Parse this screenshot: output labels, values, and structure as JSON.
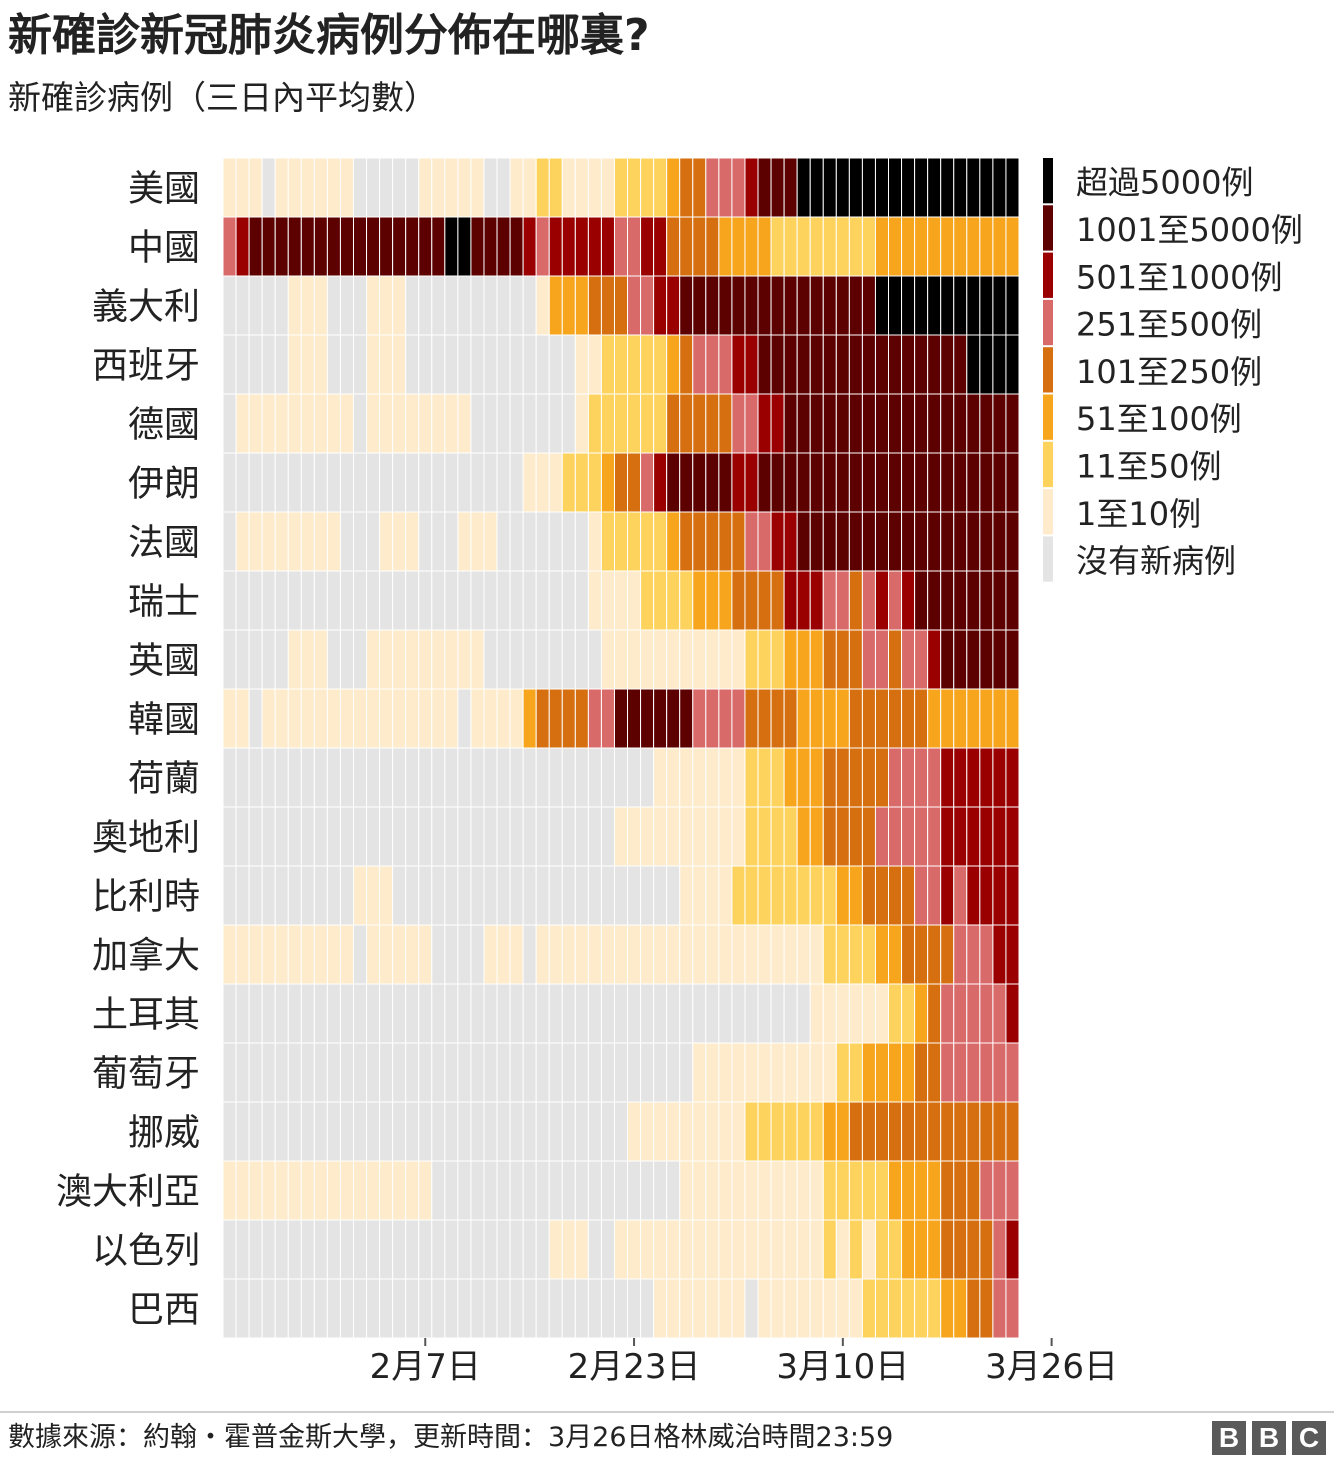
{
  "header": {
    "title": "新確診新冠肺炎病例分佈在哪裏?",
    "subtitle": "新確診病例（三日內平均數）"
  },
  "footer": {
    "source": "數據來源：約翰・霍普金斯大學，更新時間：3月26日格林威治時間23:59",
    "logo": [
      "B",
      "B",
      "C"
    ]
  },
  "colors": {
    "0": "#e4e4e4",
    "1": "#fdebcb",
    "2": "#fdd35e",
    "3": "#f7a51c",
    "4": "#d56f10",
    "5": "#d96a6a",
    "6": "#9b0000",
    "7": "#5c0000",
    "8": "#000000",
    "cell_border": "#ffffff"
  },
  "chart_data": {
    "type": "heatmap",
    "x_unit": "day",
    "x_start": "1月22日",
    "x_end": "3月26日",
    "x_ticks": [
      {
        "label": "2月7日",
        "index": 16
      },
      {
        "label": "2月23日",
        "index": 32
      },
      {
        "label": "3月10日",
        "index": 48
      },
      {
        "label": "3月26日",
        "index": 64
      }
    ],
    "legend": [
      {
        "level": 8,
        "label": "超過5000例"
      },
      {
        "level": 7,
        "label": "1001至5000例"
      },
      {
        "level": 6,
        "label": "501至1000例"
      },
      {
        "level": 5,
        "label": "251至500例"
      },
      {
        "level": 4,
        "label": "101至250例"
      },
      {
        "level": 3,
        "label": "51至100例"
      },
      {
        "level": 2,
        "label": "11至50例"
      },
      {
        "level": 1,
        "label": "1至10例"
      },
      {
        "level": 0,
        "label": "沒有新病例"
      }
    ],
    "legend_position": "right",
    "rows": [
      {
        "country": "美國",
        "levels": "1110111111000001111100112211112222344555677788888"
      },
      {
        "country": "中國",
        "levels": "5677777777777777788777765666665566444433332222222233333"
      },
      {
        "country": "義大利",
        "levels": "0000011100011100000000001333444556677777777777777788888888"
      },
      {
        "country": "西班牙",
        "levels": "0000011100011100000000000001122222345556677777777777777778"
      },
      {
        "country": "德國",
        "levels": "0111111111011111111000000001222222444445566777777777777777"
      },
      {
        "country": "伊朗",
        "levels": "0000000000000000000000011122234456777776677777777777777777"
      },
      {
        "country": "法國",
        "levels": "0111111110001110001110000000122222344444556677777777777777"
      },
      {
        "country": "瑞士",
        "levels": "0000000000000000000000000000111122223334444666554565677777"
      },
      {
        "country": "英國",
        "levels": "0000011100011111111100000000011111111111222333444554556777"
      },
      {
        "country": "韓國",
        "levels": "1101111111111111110111134444557777775555444433334444443333"
      },
      {
        "country": "荷蘭",
        "levels": "0000000000000000000000000000000001111111222333444445555666"
      },
      {
        "country": "奧地利",
        "levels": "0000000000000000000000000000001111111111222233444455555666"
      },
      {
        "country": "比利時",
        "levels": "0000000000111000000000000000000000011112222222233444455656"
      },
      {
        "country": "加拿大",
        "levels": "1111111111011111000011101111111111111111111111222233444455566"
      },
      {
        "country": "土耳其",
        "levels": "0000000000000000000000000000000000000000000001111112234555556"
      },
      {
        "country": "葡萄牙",
        "levels": "0000000000000000000000000000000000001111111111122333344555555"
      },
      {
        "country": "挪威",
        "levels": "0000000000000000000000000000000111111111222222334444444444444"
      },
      {
        "country": "澳大利亞",
        "levels": "1111111111111111000000000000000000011111111111222223333444555"
      },
      {
        "country": "以色列",
        "levels": "0000000000000000000000000111001111111111111111212122333444456"
      },
      {
        "country": "巴西",
        "levels": "0000000000000000000000000000000001111111011111111222222334455555"
      }
    ]
  }
}
